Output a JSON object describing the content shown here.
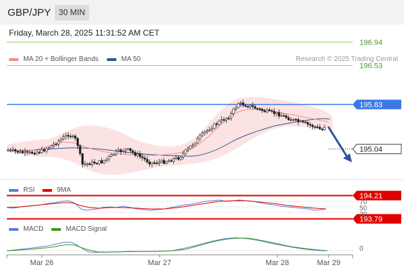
{
  "header": {
    "symbol": "GBP/JPY",
    "timeframe": "30 MIN",
    "datetime": "Friday, March 28, 2025 11:31:52 AM CET"
  },
  "main_chart": {
    "legend": [
      {
        "label": "MA 20 + Bollinger Bands",
        "color": "#f28c8c"
      },
      {
        "label": "MA 50",
        "color": "#2f5597"
      }
    ],
    "credit": "Research © 2025 Trading Central",
    "levels": [
      {
        "value": "196.94",
        "kind": "resistance",
        "color": "#6fbf45"
      },
      {
        "value": "196.53",
        "kind": "resistance",
        "color": "#6fbf45"
      },
      {
        "value": "195.83",
        "kind": "pivot",
        "color": "#3a78e8"
      },
      {
        "value": "195.04",
        "kind": "last-price",
        "color": "#222222"
      },
      {
        "value": "194.21",
        "kind": "support",
        "color": "#e00000"
      },
      {
        "value": "193.79",
        "kind": "support",
        "color": "#e00000"
      }
    ],
    "forecast_arrow": "down-arrow"
  },
  "rsi_panel": {
    "legend": [
      {
        "label": "RSI",
        "color": "#5b7fd6"
      },
      {
        "label": "9MA",
        "color": "#e00000"
      }
    ],
    "axis_labels": [
      "70",
      "50",
      "30"
    ]
  },
  "macd_panel": {
    "legend": [
      {
        "label": "MACD",
        "color": "#5b7fd6"
      },
      {
        "label": "MACD Signal",
        "color": "#3a9a1e"
      }
    ],
    "axis_labels": [
      "0"
    ]
  },
  "x_axis": {
    "ticks": [
      "Mar 26",
      "Mar 27",
      "Mar 28",
      "Mar 29"
    ]
  }
}
